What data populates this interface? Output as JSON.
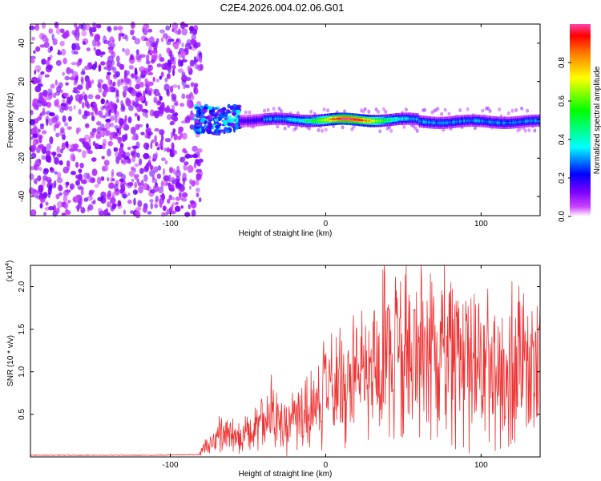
{
  "title": "C2E4.2026.004.02.06.G01",
  "chart_data": [
    {
      "type": "heatmap",
      "xlabel": "Height of straight line (km)",
      "ylabel": "Frequency (Hz)",
      "xlim": [
        -190,
        138
      ],
      "ylim": [
        -50,
        50
      ],
      "x_ticks": [
        -100,
        0,
        100
      ],
      "y_ticks": [
        -40,
        -20,
        0,
        20,
        40
      ],
      "colorbar": {
        "label": "Normalized spectral amplitude",
        "range": [
          0.0,
          1.0
        ],
        "ticks": [
          0.0,
          0.2,
          0.4,
          0.6,
          0.8
        ],
        "tick_labels": [
          "0.0",
          "0.2",
          "0.4",
          "0.6",
          "0.8"
        ]
      },
      "regions": [
        {
          "name": "noise",
          "x_range": [
            -190,
            -84
          ],
          "freq_range": [
            -50,
            50
          ],
          "amplitude": 0.15
        },
        {
          "name": "transition",
          "x_range": [
            -84,
            -55
          ],
          "freq_range": [
            -8,
            8
          ],
          "amplitude": 0.35
        },
        {
          "name": "signal",
          "x_range": [
            -55,
            138
          ],
          "center_freq": 0,
          "width_hz": 3,
          "peak_amplitude": 1.0
        }
      ]
    },
    {
      "type": "line",
      "xlabel": "Height of straight line (km)",
      "ylabel": "SNR (10 * v/v)",
      "scale_label": "(x10^4)",
      "xlim": [
        -190,
        138
      ],
      "ylim": [
        0,
        2.25
      ],
      "x_ticks": [
        -100,
        0,
        100
      ],
      "y_ticks": [
        0.5,
        1.0,
        1.5,
        2.0
      ],
      "y_tick_labels": [
        "0.5",
        "1.0",
        "1.5",
        "2.0"
      ],
      "series": [
        {
          "name": "SNR",
          "color": "#ee3333",
          "x": [
            -190,
            -150,
            -110,
            -82,
            -75,
            -65,
            -55,
            -45,
            -35,
            -25,
            -15,
            -5,
            0,
            10,
            20,
            30,
            40,
            50,
            60,
            70,
            80,
            90,
            100,
            110,
            120,
            130,
            138
          ],
          "y": [
            0.02,
            0.02,
            0.02,
            0.03,
            0.15,
            0.28,
            0.22,
            0.3,
            0.45,
            0.42,
            0.5,
            0.6,
            0.75,
            0.85,
            0.95,
            1.05,
            1.15,
            1.2,
            1.25,
            1.25,
            1.2,
            1.1,
            1.05,
            1.0,
            1.0,
            0.95,
            0.9
          ]
        }
      ]
    }
  ]
}
